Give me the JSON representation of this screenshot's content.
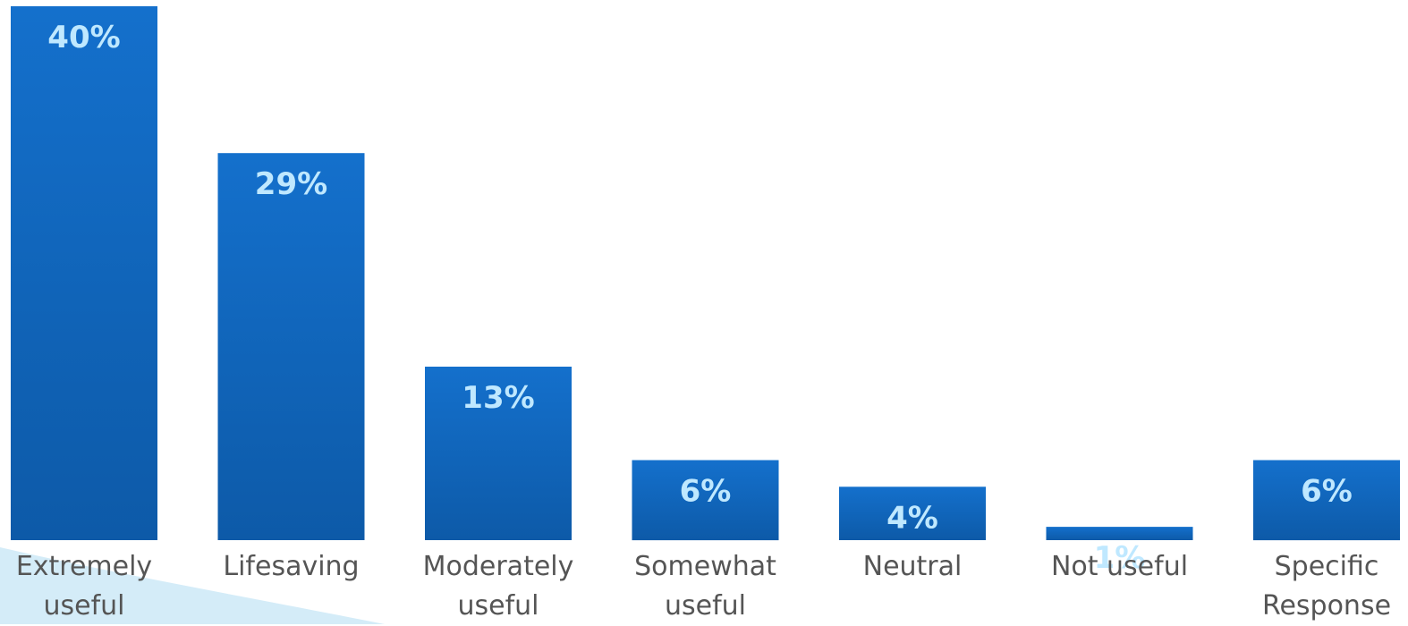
{
  "chart_data": {
    "type": "bar",
    "categories": [
      "Extremely\nuseful",
      "Lifesaving",
      "Moderately\nuseful",
      "Somewhat\nuseful",
      "Neutral",
      "Not useful",
      "Specific\nResponse"
    ],
    "values": [
      40,
      29,
      13,
      6,
      4,
      1,
      6
    ],
    "data_labels": [
      "40%",
      "29%",
      "13%",
      "6%",
      "4%",
      "1%",
      "6%"
    ],
    "title": "",
    "xlabel": "",
    "ylabel": "",
    "ylim": [
      0,
      40
    ],
    "grid": false,
    "legend": "none"
  },
  "colors": {
    "bar_top": "#1470cc",
    "bar_bottom": "#0d5aa8",
    "data_label": "#bfe8ff",
    "category_label": "#555555",
    "swoosh": "#d4ecf8"
  }
}
